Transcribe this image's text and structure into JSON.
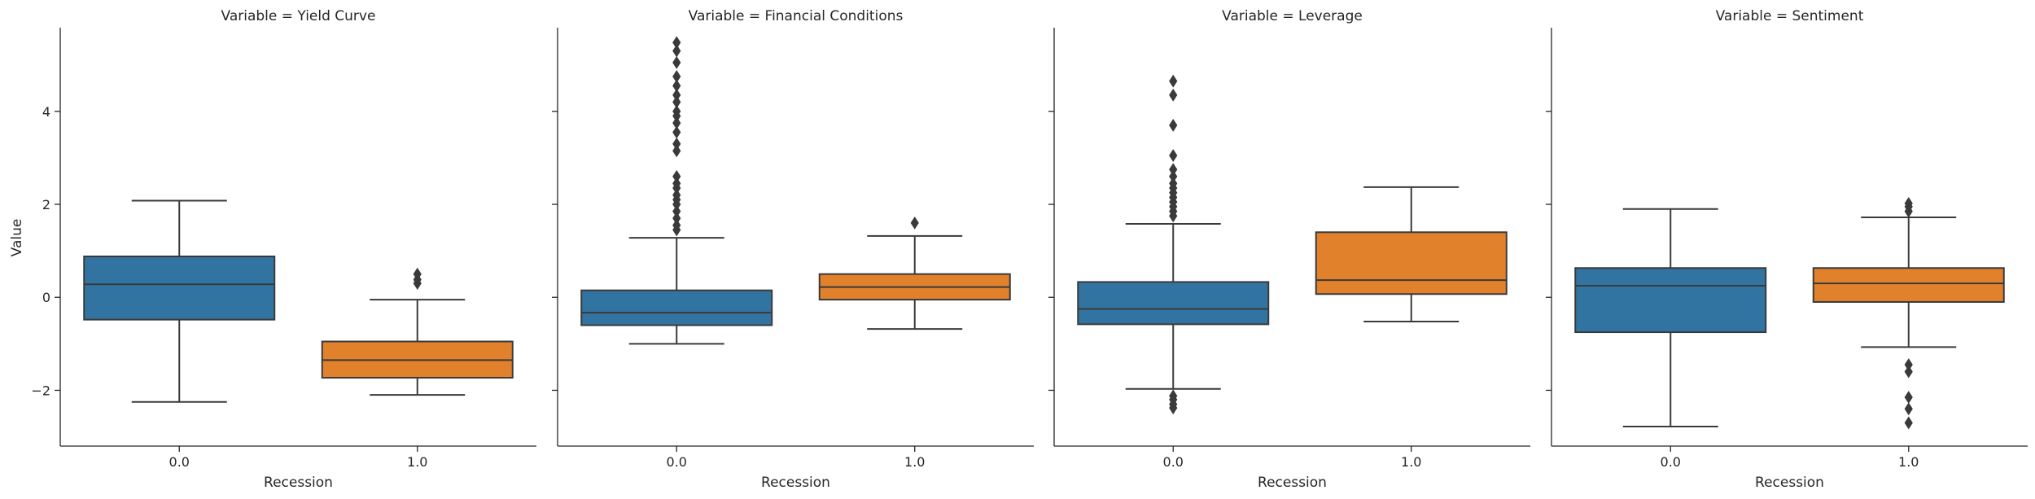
{
  "chart_data": {
    "type": "box",
    "xlabel": "Recession",
    "ylabel": "Value",
    "categories": [
      "0.0",
      "1.0"
    ],
    "ylim": [
      -3.2,
      5.8
    ],
    "yticks": [
      -2,
      0,
      2,
      4
    ],
    "ytick_labels": [
      "−2",
      "0",
      "2",
      "4"
    ],
    "category_colors": [
      "#3274a1",
      "#e1812c"
    ],
    "line_color": "#3a3a3a",
    "facets": [
      {
        "title": "Variable = Yield Curve",
        "boxes": [
          {
            "category": "0.0",
            "whisker_low": -2.25,
            "q1": -0.48,
            "median": 0.28,
            "q3": 0.88,
            "whisker_high": 2.08,
            "outliers": []
          },
          {
            "category": "1.0",
            "whisker_low": -2.1,
            "q1": -1.73,
            "median": -1.35,
            "q3": -0.95,
            "whisker_high": -0.05,
            "outliers": [
              0.3,
              0.38,
              0.5
            ]
          }
        ]
      },
      {
        "title": "Variable = Financial Conditions",
        "boxes": [
          {
            "category": "0.0",
            "whisker_low": -1.0,
            "q1": -0.6,
            "median": -0.33,
            "q3": 0.15,
            "whisker_high": 1.28,
            "outliers": [
              1.45,
              1.55,
              1.7,
              1.85,
              2.0,
              2.1,
              2.2,
              2.35,
              2.45,
              2.6,
              3.15,
              3.3,
              3.55,
              3.75,
              3.9,
              4.0,
              4.2,
              4.35,
              4.55,
              4.75,
              5.05,
              5.3,
              5.48
            ]
          },
          {
            "category": "1.0",
            "whisker_low": -0.68,
            "q1": -0.05,
            "median": 0.22,
            "q3": 0.5,
            "whisker_high": 1.32,
            "outliers": [
              1.6
            ]
          }
        ]
      },
      {
        "title": "Variable = Leverage",
        "boxes": [
          {
            "category": "0.0",
            "whisker_low": -1.97,
            "q1": -0.58,
            "median": -0.25,
            "q3": 0.33,
            "whisker_high": 1.58,
            "outliers": [
              1.75,
              1.85,
              1.95,
              2.05,
              2.15,
              2.25,
              2.35,
              2.45,
              2.6,
              2.75,
              3.05,
              3.7,
              4.35,
              4.65,
              -2.12,
              -2.2,
              -2.3,
              -2.38
            ]
          },
          {
            "category": "1.0",
            "whisker_low": -0.52,
            "q1": 0.07,
            "median": 0.37,
            "q3": 1.4,
            "whisker_high": 2.37,
            "outliers": []
          }
        ]
      },
      {
        "title": "Variable = Sentiment",
        "boxes": [
          {
            "category": "0.0",
            "whisker_low": -2.78,
            "q1": -0.75,
            "median": 0.25,
            "q3": 0.63,
            "whisker_high": 1.9,
            "outliers": []
          },
          {
            "category": "1.0",
            "whisker_low": -1.07,
            "q1": -0.1,
            "median": 0.3,
            "q3": 0.63,
            "whisker_high": 1.72,
            "outliers": [
              1.85,
              1.95,
              2.02,
              -1.45,
              -1.6,
              -2.15,
              -2.4,
              -2.7
            ]
          }
        ]
      }
    ]
  }
}
